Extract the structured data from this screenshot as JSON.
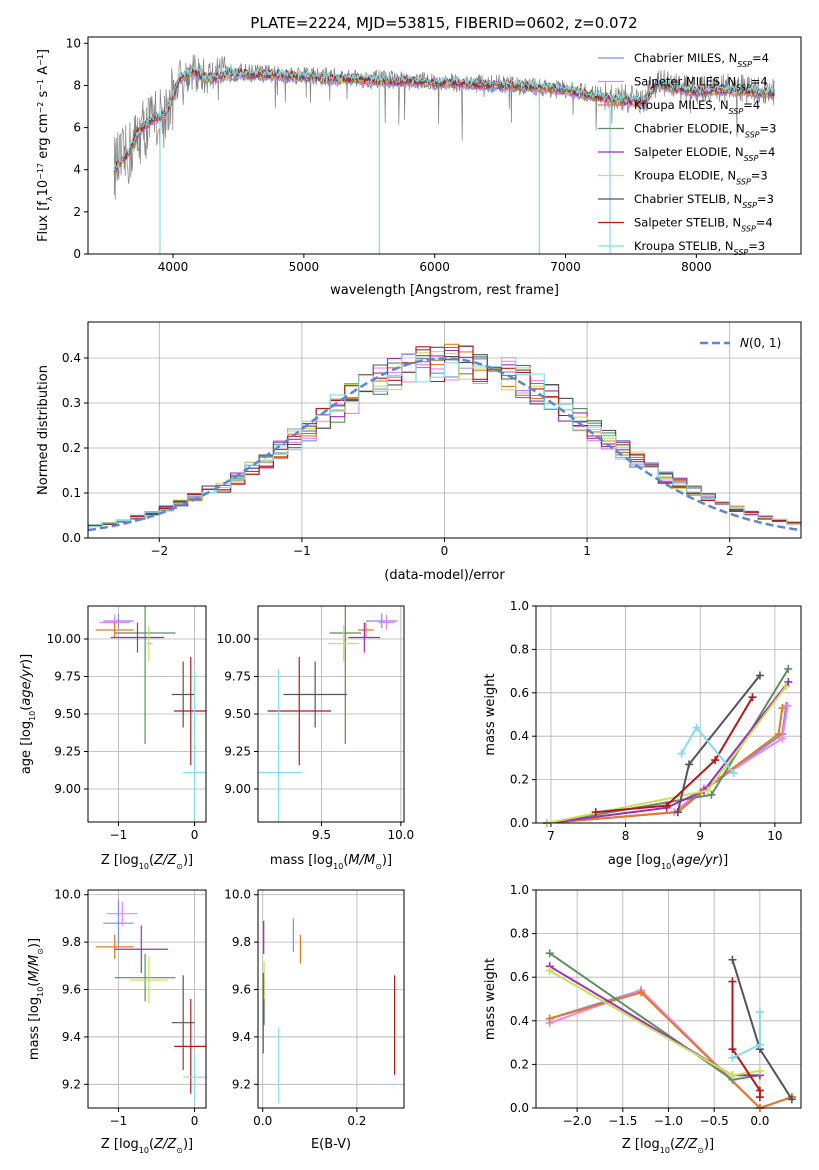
{
  "figure": {
    "title": "PLATE=2224, MJD=53815, FIBERID=0602, z=0.072"
  },
  "colors": {
    "Chabrier MILES": "#7b8fe0",
    "Salpeter MILES": "#ee82ee",
    "Kroupa MILES": "#e07b24",
    "Chabrier ELODIE": "#5f8d5f",
    "Salpeter ELODIE": "#9b30b8",
    "Kroupa ELODIE": "#c8e05a",
    "Chabrier STELIB": "#555555",
    "Salpeter STELIB": "#b21a1a",
    "Kroupa STELIB": "#80dde8",
    "normal": "#5b86d6"
  },
  "chart_data": [
    {
      "type": "line",
      "panel": "spectrum",
      "xlabel": "wavelength [Angstrom, rest frame]",
      "ylabel": "Flux [f_λ 10^-17 erg cm^-2 s^-1 A^-1]",
      "xlim": [
        3350,
        8800
      ],
      "ylim": [
        0,
        10.3
      ],
      "xticks": [
        4000,
        5000,
        6000,
        7000,
        8000
      ],
      "yticks": [
        0,
        2,
        4,
        6,
        8,
        10
      ],
      "grid": false,
      "legend_position": "upper-right",
      "legend": [
        "Chabrier MILES, N_SSP=4",
        "Salpeter MILES, N_SSP=4",
        "Kroupa MILES, N_SSP=4",
        "Chabrier ELODIE, N_SSP=3",
        "Salpeter ELODIE, N_SSP=4",
        "Kroupa ELODIE, N_SSP=3",
        "Chabrier STELIB, N_SSP=3",
        "Salpeter STELIB, N_SSP=4",
        "Kroupa STELIB, N_SSP=3"
      ],
      "data_continuum": {
        "x": [
          3550,
          3650,
          3750,
          3850,
          3950,
          4050,
          4150,
          4250,
          4350,
          4450,
          4600,
          4800,
          5000,
          5200,
          5400,
          5600,
          5800,
          6000,
          6200,
          6400,
          6600,
          6800,
          7000,
          7200,
          7400,
          7600,
          7700,
          7800,
          8000,
          8200,
          8400,
          8600
        ],
        "y": [
          4.1,
          4.6,
          5.8,
          6.3,
          6.6,
          8.4,
          8.6,
          8.4,
          8.5,
          8.6,
          8.6,
          8.5,
          8.5,
          8.4,
          8.3,
          8.3,
          8.2,
          8.2,
          8.1,
          8.1,
          8.0,
          7.9,
          7.8,
          7.6,
          7.4,
          7.3,
          8.2,
          8.0,
          7.8,
          7.9,
          7.8,
          7.7
        ]
      },
      "model_continuum": {
        "x": [
          3550,
          3650,
          3750,
          3850,
          3950,
          4050,
          4150,
          4250,
          4350,
          4450,
          4600,
          4800,
          5000,
          5200,
          5400,
          5600,
          5800,
          6000,
          6200,
          6400,
          6600,
          6800,
          7000,
          7200,
          7400,
          7600,
          7700,
          7800,
          8000,
          8200,
          8400,
          8600
        ],
        "y": [
          4.0,
          4.7,
          5.9,
          6.4,
          6.7,
          8.3,
          8.7,
          8.3,
          8.4,
          8.6,
          8.5,
          8.5,
          8.4,
          8.3,
          8.3,
          8.2,
          8.2,
          8.1,
          8.1,
          8.0,
          8.0,
          7.9,
          7.8,
          7.5,
          7.3,
          7.2,
          8.1,
          7.9,
          7.7,
          7.8,
          7.7,
          7.6
        ]
      },
      "data_spikes": [
        {
          "x": 3900,
          "y": 0
        },
        {
          "x": 5577,
          "y": 0
        },
        {
          "x": 6800,
          "y": 0
        },
        {
          "x": 7340,
          "y": 0
        }
      ]
    },
    {
      "type": "line",
      "panel": "residual-histogram",
      "xlabel": "(data-model)/error",
      "ylabel": "Normed distribution",
      "xlim": [
        -2.5,
        2.5
      ],
      "ylim": [
        0,
        0.48
      ],
      "xticks": [
        -2,
        -1,
        0,
        1,
        2
      ],
      "yticks": [
        0.0,
        0.1,
        0.2,
        0.3,
        0.4
      ],
      "grid": true,
      "legend_position": "upper-right",
      "legend": [
        "N(0,1)"
      ],
      "series": [
        {
          "name": "N(0,1)",
          "mu": 0,
          "sigma": 1,
          "style": "dashed"
        }
      ]
    },
    {
      "type": "scatter",
      "panel": "age-vs-Z",
      "xlabel": "Z [log10(Z/Z☉)]",
      "ylabel": "age  [log10(age/yr)]",
      "xlim": [
        -1.4,
        0.15
      ],
      "ylim": [
        8.78,
        10.22
      ],
      "xticks": [
        -1,
        0
      ],
      "yticks": [
        9.0,
        9.25,
        9.5,
        9.75,
        10.0
      ],
      "grid": true,
      "points": [
        {
          "model": "Chabrier MILES",
          "x": -1.0,
          "y": 10.12,
          "xerr": 0.2,
          "yerr": 0.05
        },
        {
          "model": "Salpeter MILES",
          "x": -1.05,
          "y": 10.11,
          "xerr": 0.2,
          "yerr": 0.05
        },
        {
          "model": "Kroupa MILES",
          "x": -1.05,
          "y": 10.06,
          "xerr": 0.25,
          "yerr": 0.05
        },
        {
          "model": "Chabrier ELODIE",
          "x": -0.65,
          "y": 10.04,
          "xerr": 0.4,
          "yerr": 0.74
        },
        {
          "model": "Salpeter ELODIE",
          "x": -0.75,
          "y": 10.01,
          "xerr": 0.35,
          "yerr": 0.1
        },
        {
          "model": "Kroupa ELODIE",
          "x": -0.6,
          "y": 9.97,
          "xerr": 0.05,
          "yerr": 0.12
        },
        {
          "model": "Chabrier STELIB",
          "x": -0.15,
          "y": 9.63,
          "xerr": 0.15,
          "yerr": 0.22
        },
        {
          "model": "Salpeter STELIB",
          "x": -0.05,
          "y": 9.52,
          "xerr": 0.22,
          "yerr": 0.36
        },
        {
          "model": "Kroupa STELIB",
          "x": 0.0,
          "y": 9.11,
          "xerr": 0.15,
          "yerr": 0.69
        }
      ]
    },
    {
      "type": "scatter",
      "panel": "age-vs-mass",
      "xlabel": "mass [log10(M/M☉)]",
      "ylabel": "",
      "xlim": [
        9.1,
        10.02
      ],
      "ylim": [
        8.78,
        10.22
      ],
      "xticks": [
        9.5,
        10.0
      ],
      "yticks": [
        9.0,
        9.25,
        9.5,
        9.75,
        10.0
      ],
      "grid": true,
      "points": [
        {
          "model": "Chabrier MILES",
          "x": 9.88,
          "y": 10.12,
          "xerr": 0.1,
          "yerr": 0.05
        },
        {
          "model": "Salpeter MILES",
          "x": 9.91,
          "y": 10.11,
          "xerr": 0.05,
          "yerr": 0.05
        },
        {
          "model": "Kroupa MILES",
          "x": 9.78,
          "y": 10.06,
          "xerr": 0.05,
          "yerr": 0.05
        },
        {
          "model": "Chabrier ELODIE",
          "x": 9.65,
          "y": 10.04,
          "xerr": 0.1,
          "yerr": 0.74
        },
        {
          "model": "Salpeter ELODIE",
          "x": 9.77,
          "y": 10.01,
          "xerr": 0.1,
          "yerr": 0.1
        },
        {
          "model": "Kroupa ELODIE",
          "x": 9.64,
          "y": 9.97,
          "xerr": 0.1,
          "yerr": 0.12
        },
        {
          "model": "Chabrier STELIB",
          "x": 9.46,
          "y": 9.63,
          "xerr": 0.2,
          "yerr": 0.22
        },
        {
          "model": "Salpeter STELIB",
          "x": 9.36,
          "y": 9.52,
          "xerr": 0.2,
          "yerr": 0.36
        },
        {
          "model": "Kroupa STELIB",
          "x": 9.23,
          "y": 9.11,
          "xerr": 0.15,
          "yerr": 0.69
        }
      ]
    },
    {
      "type": "line",
      "panel": "mass-weight-vs-age",
      "xlabel": "age  [log10(age/yr)]",
      "ylabel": "mass weight",
      "xlim": [
        6.8,
        10.35
      ],
      "ylim": [
        0,
        1.0
      ],
      "xticks": [
        7,
        8,
        9,
        10
      ],
      "yticks": [
        0.0,
        0.2,
        0.4,
        0.6,
        0.8,
        1.0
      ],
      "grid": true,
      "series": [
        {
          "name": "Chabrier MILES",
          "x": [
            6.95,
            8.7,
            9.05,
            10.1,
            10.15
          ],
          "y": [
            0.0,
            0.05,
            0.15,
            0.41,
            0.54
          ]
        },
        {
          "name": "Salpeter MILES",
          "x": [
            6.95,
            8.65,
            9.05,
            10.1,
            10.17
          ],
          "y": [
            0.0,
            0.05,
            0.16,
            0.39,
            0.54
          ]
        },
        {
          "name": "Kroupa MILES",
          "x": [
            6.95,
            8.7,
            9.0,
            10.05,
            10.1
          ],
          "y": [
            0.0,
            0.05,
            0.14,
            0.41,
            0.53
          ]
        },
        {
          "name": "Chabrier ELODIE",
          "x": [
            6.95,
            9.15,
            10.18
          ],
          "y": [
            0.0,
            0.13,
            0.71
          ]
        },
        {
          "name": "Salpeter ELODIE",
          "x": [
            6.95,
            8.55,
            9.05,
            10.18
          ],
          "y": [
            0.0,
            0.07,
            0.15,
            0.65
          ]
        },
        {
          "name": "Kroupa ELODIE",
          "x": [
            6.95,
            9.1,
            10.15
          ],
          "y": [
            0.0,
            0.15,
            0.63
          ]
        },
        {
          "name": "Chabrier STELIB",
          "x": [
            8.7,
            8.85,
            9.8
          ],
          "y": [
            0.05,
            0.27,
            0.68
          ]
        },
        {
          "name": "Salpeter STELIB",
          "x": [
            7.6,
            8.55,
            9.2,
            9.7
          ],
          "y": [
            0.05,
            0.08,
            0.29,
            0.58
          ]
        },
        {
          "name": "Kroupa STELIB",
          "x": [
            8.75,
            8.95,
            9.45
          ],
          "y": [
            0.32,
            0.44,
            0.23
          ]
        }
      ]
    },
    {
      "type": "scatter",
      "panel": "mass-vs-Z",
      "xlabel": "Z [log10(Z/Z☉)]",
      "ylabel": "mass [log10(M/M☉)]",
      "xlim": [
        -1.4,
        0.15
      ],
      "ylim": [
        9.1,
        10.02
      ],
      "xticks": [
        -1,
        0
      ],
      "yticks": [
        9.2,
        9.4,
        9.6,
        9.8,
        10.0
      ],
      "grid": true,
      "points": [
        {
          "model": "Chabrier MILES",
          "x": -1.0,
          "y": 9.88,
          "xerr": 0.2,
          "yerr": 0.1
        },
        {
          "model": "Salpeter MILES",
          "x": -0.95,
          "y": 9.92,
          "xerr": 0.2,
          "yerr": 0.05
        },
        {
          "model": "Kroupa MILES",
          "x": -1.05,
          "y": 9.78,
          "xerr": 0.25,
          "yerr": 0.05
        },
        {
          "model": "Chabrier ELODIE",
          "x": -0.65,
          "y": 9.65,
          "xerr": 0.4,
          "yerr": 0.1
        },
        {
          "model": "Salpeter ELODIE",
          "x": -0.7,
          "y": 9.77,
          "xerr": 0.35,
          "yerr": 0.1
        },
        {
          "model": "Kroupa ELODIE",
          "x": -0.6,
          "y": 9.64,
          "xerr": 0.25,
          "yerr": 0.1
        },
        {
          "model": "Chabrier STELIB",
          "x": -0.15,
          "y": 9.46,
          "xerr": 0.15,
          "yerr": 0.2
        },
        {
          "model": "Salpeter STELIB",
          "x": -0.05,
          "y": 9.36,
          "xerr": 0.22,
          "yerr": 0.2
        },
        {
          "model": "Kroupa STELIB",
          "x": 0.0,
          "y": 9.23,
          "xerr": 0.15,
          "yerr": 0.1
        }
      ]
    },
    {
      "type": "scatter",
      "panel": "mass-vs-EBV",
      "xlabel": "E(B-V)",
      "ylabel": "",
      "xlim": [
        -0.01,
        0.3
      ],
      "ylim": [
        9.1,
        10.02
      ],
      "xticks": [
        0.0,
        0.2
      ],
      "yticks": [
        9.2,
        9.4,
        9.6,
        9.8,
        10.0
      ],
      "grid": true,
      "points": [
        {
          "model": "Chabrier MILES",
          "x": 0.065,
          "y": 9.83,
          "xerr": 0,
          "yerr": 0.07
        },
        {
          "model": "Salpeter MILES",
          "x": 0.002,
          "y": 9.82,
          "xerr": 0,
          "yerr": 0.07
        },
        {
          "model": "Kroupa MILES",
          "x": 0.08,
          "y": 9.77,
          "xerr": 0,
          "yerr": 0.06
        },
        {
          "model": "Chabrier ELODIE",
          "x": 0.003,
          "y": 9.55,
          "xerr": 0,
          "yerr": 0.1
        },
        {
          "model": "Salpeter ELODIE",
          "x": 0.002,
          "y": 9.82,
          "xerr": 0,
          "yerr": 0.07
        },
        {
          "model": "Kroupa ELODIE",
          "x": 0.003,
          "y": 9.64,
          "xerr": 0,
          "yerr": 0.08
        },
        {
          "model": "Chabrier STELIB",
          "x": 0.001,
          "y": 9.5,
          "xerr": 0,
          "yerr": 0.17
        },
        {
          "model": "Salpeter STELIB",
          "x": 0.28,
          "y": 9.45,
          "xerr": 0,
          "yerr": 0.21
        },
        {
          "model": "Kroupa STELIB",
          "x": 0.034,
          "y": 9.28,
          "xerr": 0,
          "yerr": 0.16
        }
      ]
    },
    {
      "type": "line",
      "panel": "mass-weight-vs-Z",
      "xlabel": "Z [log10(Z/Z☉)]",
      "ylabel": "mass weight",
      "xlim": [
        -2.45,
        0.45
      ],
      "ylim": [
        0,
        1.0
      ],
      "xticks": [
        -2.0,
        -1.5,
        -1.0,
        -0.5,
        0.0
      ],
      "yticks": [
        0.0,
        0.2,
        0.4,
        0.6,
        0.8,
        1.0
      ],
      "grid": true,
      "series": [
        {
          "name": "Chabrier MILES",
          "x": [
            -2.3,
            -1.3,
            0.0,
            0.35
          ],
          "y": [
            0.41,
            0.54,
            0.0,
            0.05
          ]
        },
        {
          "name": "Salpeter MILES",
          "x": [
            -2.3,
            -1.3,
            0.0,
            0.35
          ],
          "y": [
            0.39,
            0.54,
            0.0,
            0.05
          ]
        },
        {
          "name": "Kroupa MILES",
          "x": [
            -2.3,
            -1.3,
            0.0,
            0.35
          ],
          "y": [
            0.41,
            0.53,
            0.0,
            0.05
          ]
        },
        {
          "name": "Chabrier ELODIE",
          "x": [
            -2.3,
            -0.3,
            0.0
          ],
          "y": [
            0.71,
            0.13,
            0.15
          ]
        },
        {
          "name": "Salpeter ELODIE",
          "x": [
            -2.3,
            -0.3,
            0.0
          ],
          "y": [
            0.65,
            0.15,
            0.15
          ]
        },
        {
          "name": "Kroupa ELODIE",
          "x": [
            -2.3,
            -0.3,
            0.0
          ],
          "y": [
            0.63,
            0.15,
            0.17
          ]
        },
        {
          "name": "Chabrier STELIB",
          "x": [
            -0.3,
            0.0,
            0.35
          ],
          "y": [
            0.68,
            0.27,
            0.04
          ]
        },
        {
          "name": "Salpeter STELIB",
          "x": [
            -0.3,
            -0.3,
            0.0,
            0.0
          ],
          "y": [
            0.58,
            0.27,
            0.08,
            0.05
          ]
        },
        {
          "name": "Kroupa STELIB",
          "x": [
            -0.3,
            0.0,
            0.0
          ],
          "y": [
            0.23,
            0.29,
            0.44
          ]
        }
      ]
    }
  ]
}
